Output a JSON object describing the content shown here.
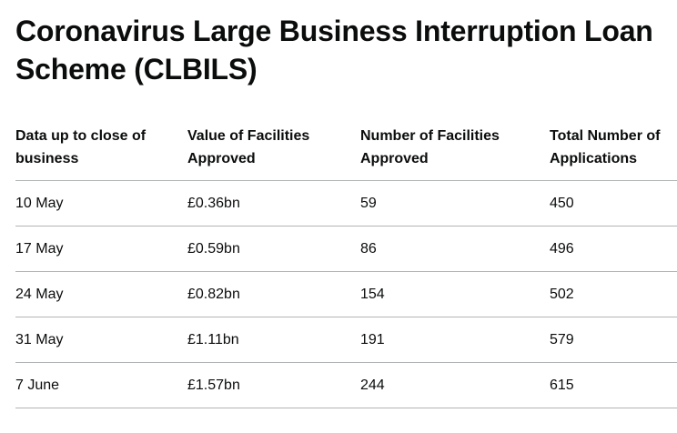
{
  "title": "Coronavirus Large Business Interruption Loan Scheme (CLBILS)",
  "table": {
    "headers": [
      "Data up to close of business",
      "Value of Facilities Approved",
      "Number of Facilities Approved",
      "Total Number of Applications"
    ],
    "rows": [
      [
        "10 May",
        "£0.36bn",
        "59",
        "450"
      ],
      [
        "17 May",
        "£0.59bn",
        "86",
        "496"
      ],
      [
        "24 May",
        "£0.82bn",
        "154",
        "502"
      ],
      [
        "31 May",
        "£1.11bn",
        "191",
        "579"
      ],
      [
        "7 June",
        "£1.57bn",
        "244",
        "615"
      ]
    ]
  }
}
